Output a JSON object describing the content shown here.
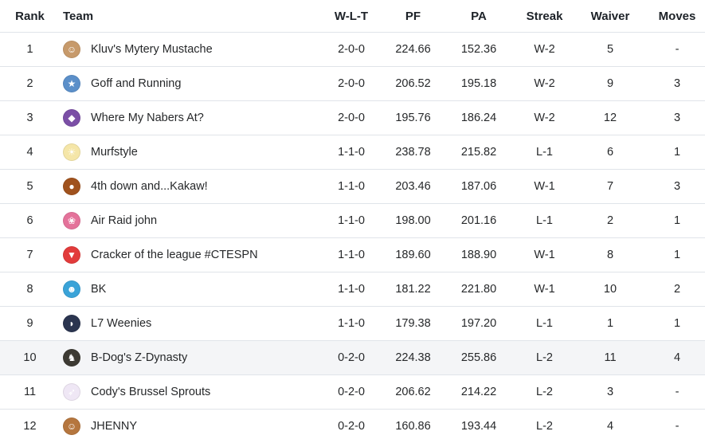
{
  "headers": {
    "rank": "Rank",
    "team": "Team",
    "wlt": "W-L-T",
    "pf": "PF",
    "pa": "PA",
    "streak": "Streak",
    "waiver": "Waiver",
    "moves": "Moves"
  },
  "rows": [
    {
      "rank": "1",
      "team": "Kluv's Mytery Mustache",
      "wlt": "2-0-0",
      "pf": "224.66",
      "pa": "152.36",
      "streak": "W-2",
      "waiver": "5",
      "moves": "-",
      "logo_icon": "mustache-man-icon",
      "logo_glyph": "☺",
      "logo_bg": "#c79a6b"
    },
    {
      "rank": "2",
      "team": "Goff and Running",
      "wlt": "2-0-0",
      "pf": "206.52",
      "pa": "195.18",
      "streak": "W-2",
      "waiver": "9",
      "moves": "3",
      "logo_icon": "runner-icon",
      "logo_glyph": "★",
      "logo_bg": "#5b8fc9"
    },
    {
      "rank": "3",
      "team": "Where My Nabers At?",
      "wlt": "2-0-0",
      "pf": "195.76",
      "pa": "186.24",
      "streak": "W-2",
      "waiver": "12",
      "moves": "3",
      "logo_icon": "purple-helmet-icon",
      "logo_glyph": "◆",
      "logo_bg": "#7b4fa6"
    },
    {
      "rank": "4",
      "team": "Murfstyle",
      "wlt": "1-1-0",
      "pf": "238.78",
      "pa": "215.82",
      "streak": "L-1",
      "waiver": "6",
      "moves": "1",
      "logo_icon": "sun-cloud-icon",
      "logo_glyph": "☀",
      "logo_bg": "#f5e6a8"
    },
    {
      "rank": "5",
      "team": "4th down and...Kakaw!",
      "wlt": "1-1-0",
      "pf": "203.46",
      "pa": "187.06",
      "streak": "W-1",
      "waiver": "7",
      "moves": "3",
      "logo_icon": "bird-icon",
      "logo_glyph": "●",
      "logo_bg": "#a0521d"
    },
    {
      "rank": "6",
      "team": "Air Raid john",
      "wlt": "1-1-0",
      "pf": "198.00",
      "pa": "201.16",
      "streak": "L-1",
      "waiver": "2",
      "moves": "1",
      "logo_icon": "pink-brain-icon",
      "logo_glyph": "❀",
      "logo_bg": "#e4729a"
    },
    {
      "rank": "7",
      "team": "Cracker of the league #CTESPN",
      "wlt": "1-1-0",
      "pf": "189.60",
      "pa": "188.90",
      "streak": "W-1",
      "waiver": "8",
      "moves": "1",
      "logo_icon": "red-cup-icon",
      "logo_glyph": "▼",
      "logo_bg": "#e23b3b"
    },
    {
      "rank": "8",
      "team": "BK",
      "wlt": "1-1-0",
      "pf": "181.22",
      "pa": "221.80",
      "streak": "W-1",
      "waiver": "10",
      "moves": "2",
      "logo_icon": "colorful-face-icon",
      "logo_glyph": "☻",
      "logo_bg": "#3aa3d8"
    },
    {
      "rank": "9",
      "team": "L7 Weenies",
      "wlt": "1-1-0",
      "pf": "179.38",
      "pa": "197.20",
      "streak": "L-1",
      "waiver": "1",
      "moves": "1",
      "logo_icon": "dark-helmet-icon",
      "logo_glyph": "◗",
      "logo_bg": "#2b3550"
    },
    {
      "rank": "10",
      "team": "B-Dog's Z-Dynasty",
      "wlt": "0-2-0",
      "pf": "224.38",
      "pa": "255.86",
      "streak": "L-2",
      "waiver": "11",
      "moves": "4",
      "logo_icon": "dark-avatar-icon",
      "logo_glyph": "♞",
      "logo_bg": "#3d3a33"
    },
    {
      "rank": "11",
      "team": "Cody's Brussel Sprouts",
      "wlt": "0-2-0",
      "pf": "206.62",
      "pa": "214.22",
      "streak": "L-2",
      "waiver": "3",
      "moves": "-",
      "logo_icon": "purple-swoosh-icon",
      "logo_glyph": "➶",
      "logo_bg": "#efe7f5"
    },
    {
      "rank": "12",
      "team": "JHENNY",
      "wlt": "0-2-0",
      "pf": "160.86",
      "pa": "193.44",
      "streak": "L-2",
      "waiver": "4",
      "moves": "-",
      "logo_icon": "bearded-man-icon",
      "logo_glyph": "☺",
      "logo_bg": "#b5763e"
    }
  ],
  "highlighted_row": "10"
}
